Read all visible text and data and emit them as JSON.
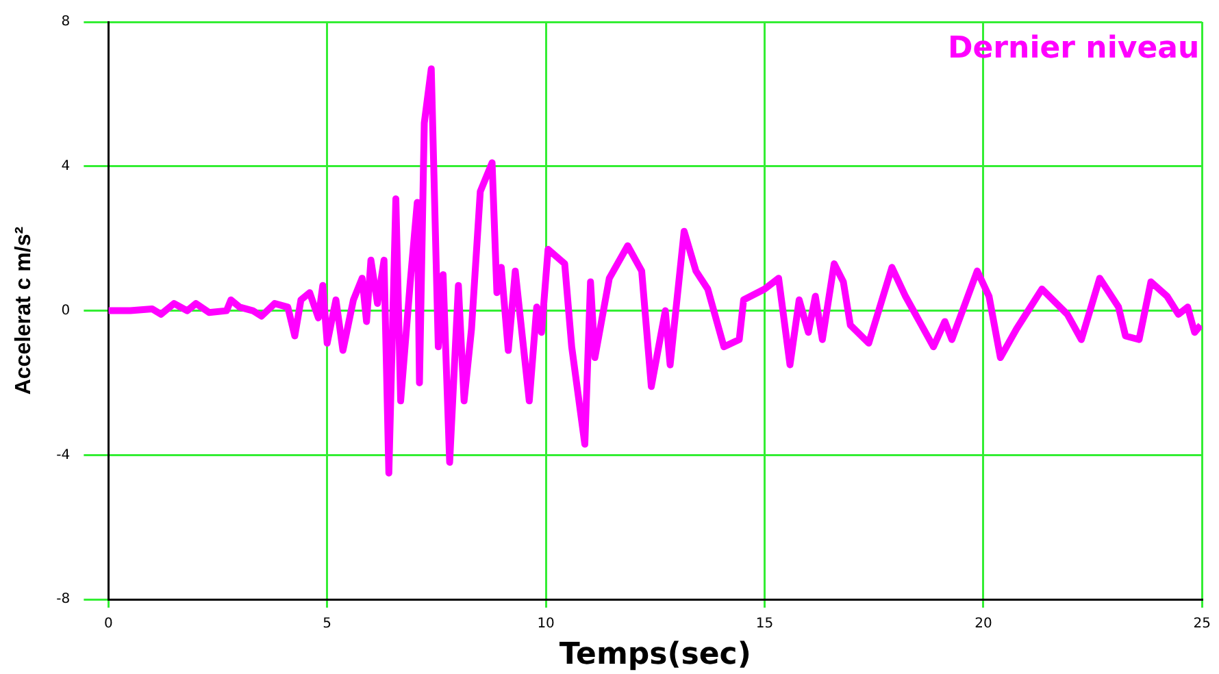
{
  "chart_data": {
    "type": "line",
    "xlabel": "Temps(sec)",
    "ylabel": "Accelerat c m/s²",
    "xlim": [
      0,
      25
    ],
    "ylim": [
      -8,
      8
    ],
    "xticks": [
      0,
      5,
      10,
      15,
      20,
      25
    ],
    "yticks": [
      -8,
      -4,
      0,
      4,
      8
    ],
    "grid": true,
    "legend": "top right",
    "marker": "none",
    "line_style": "solid",
    "series": [
      {
        "name": "Dernier niveau",
        "color": "#ff00ff",
        "x": [
          0,
          0.5,
          1,
          1.2,
          1.5,
          1.8,
          2,
          2.3,
          2.7,
          2.8,
          3,
          3.3,
          3.5,
          3.8,
          4.1,
          4.26,
          4.4,
          4.6,
          4.8,
          4.9,
          5,
          5.2,
          5.36,
          5.6,
          5.8,
          5.9,
          6,
          6.15,
          6.3,
          6.41,
          6.57,
          6.68,
          6.9,
          7.06,
          7.11,
          7.22,
          7.38,
          7.54,
          7.65,
          7.8,
          8,
          8.13,
          8.3,
          8.5,
          8.77,
          8.88,
          8.98,
          9.14,
          9.3,
          9.62,
          9.79,
          9.9,
          10.05,
          10.43,
          10.59,
          10.89,
          11.02,
          11.12,
          11.45,
          11.87,
          12.19,
          12.41,
          12.73,
          12.84,
          13.16,
          13.43,
          13.7,
          14.07,
          14.42,
          14.52,
          15,
          15.32,
          15.58,
          15.79,
          16,
          16.16,
          16.32,
          16.59,
          16.8,
          16.96,
          17.38,
          17.91,
          18.22,
          18.54,
          18.86,
          19.12,
          19.28,
          19.86,
          20.13,
          20.39,
          20.76,
          21.34,
          21.92,
          22.24,
          22.66,
          23.09,
          23.25,
          23.56,
          23.83,
          24.2,
          24.46,
          24.67,
          24.83,
          24.97
        ],
        "values": [
          0,
          0,
          0.05,
          -0.1,
          0.2,
          0,
          0.2,
          -0.05,
          0,
          0.3,
          0.1,
          0,
          -0.15,
          0.2,
          0.1,
          -0.7,
          0.3,
          0.5,
          -0.2,
          0.7,
          -0.9,
          0.3,
          -1.1,
          0.3,
          0.9,
          -0.3,
          1.4,
          0.2,
          1.4,
          -4.5,
          3.1,
          -2.5,
          0.8,
          3,
          -2,
          5.2,
          6.7,
          -1,
          1,
          -4.2,
          0.7,
          -2.5,
          -0.5,
          3.3,
          4.1,
          0.5,
          1.2,
          -1.1,
          1.1,
          -2.5,
          0.1,
          -0.6,
          1.7,
          1.3,
          -1,
          -3.7,
          0.8,
          -1.3,
          0.9,
          1.8,
          1.1,
          -2.1,
          0,
          -1.5,
          2.2,
          1.1,
          0.6,
          -1,
          -0.8,
          0.3,
          0.6,
          0.9,
          -1.5,
          0.3,
          -0.6,
          0.4,
          -0.8,
          1.3,
          0.8,
          -0.4,
          -0.9,
          1.2,
          0.4,
          -0.3,
          -1,
          -0.3,
          -0.8,
          1.1,
          0.4,
          -1.3,
          -0.5,
          0.6,
          -0.1,
          -0.8,
          0.9,
          0.1,
          -0.7,
          -0.8,
          0.8,
          0.4,
          -0.1,
          0.1,
          -0.6,
          -0.4
        ]
      }
    ]
  }
}
